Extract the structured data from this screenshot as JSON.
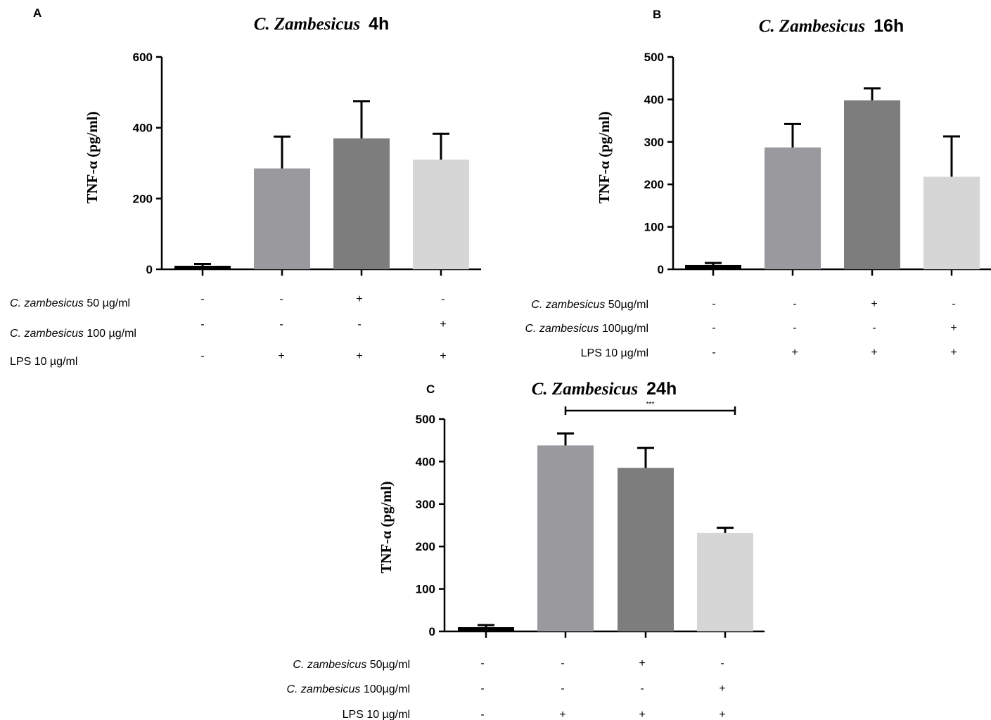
{
  "chart_data": [
    {
      "panel": "A",
      "type": "bar",
      "title": "C. Zambesicus  4h",
      "title_parts": [
        "C. Zambesicus",
        "4h"
      ],
      "ylabel": "TNF-α  (pg/ml)",
      "ylim": [
        0,
        600
      ],
      "yticks": [
        0,
        200,
        400,
        600
      ],
      "values": [
        10,
        285,
        370,
        310
      ],
      "errors": [
        5,
        90,
        105,
        73
      ],
      "bar_colors": [
        "#000000",
        "#9a9a9e",
        "#7d7d7d",
        "#d6d6d6"
      ],
      "conditions": [
        {
          "label_italic": "C. zambesicus",
          "label_rest": " 50 µg/ml",
          "signs": [
            "-",
            "-",
            "+",
            "-"
          ]
        },
        {
          "label_italic": "C. zambesicus",
          "label_rest": " 100 µg/ml",
          "signs": [
            "-",
            "-",
            "-",
            "+"
          ]
        },
        {
          "label_italic": "",
          "label_rest": "LPS 10 µg/ml",
          "signs": [
            "-",
            "+",
            "+",
            "+"
          ]
        }
      ]
    },
    {
      "panel": "B",
      "type": "bar",
      "title": "C. Zambesicus  16h",
      "title_parts": [
        "C. Zambesicus",
        "16h"
      ],
      "ylabel": "TNF-α  (pg/ml)",
      "ylim": [
        0,
        500
      ],
      "yticks": [
        0,
        100,
        200,
        300,
        400,
        500
      ],
      "values": [
        10,
        287,
        398,
        218
      ],
      "errors": [
        5,
        55,
        28,
        95
      ],
      "bar_colors": [
        "#000000",
        "#9a9a9e",
        "#7d7d7d",
        "#d6d6d6"
      ],
      "conditions": [
        {
          "label_italic": "C. zambesicus",
          "label_rest": " 50µg/ml",
          "signs": [
            "-",
            "-",
            "+",
            "-"
          ]
        },
        {
          "label_italic": "C. zambesicus",
          "label_rest": " 100µg/ml",
          "signs": [
            "-",
            "-",
            "-",
            "+"
          ]
        },
        {
          "label_italic": "",
          "label_rest": "LPS 10 µg/ml",
          "signs": [
            "-",
            "+",
            "+",
            "+"
          ]
        }
      ]
    },
    {
      "panel": "C",
      "type": "bar",
      "title": "C. Zambesicus  24h",
      "title_parts": [
        "C. Zambesicus",
        "24h"
      ],
      "ylabel": "TNF-α  (pg/ml)",
      "ylim": [
        0,
        500
      ],
      "yticks": [
        0,
        100,
        200,
        300,
        400,
        500
      ],
      "values": [
        10,
        438,
        385,
        232
      ],
      "errors": [
        5,
        28,
        47,
        12
      ],
      "bar_colors": [
        "#000000",
        "#9a9a9e",
        "#7d7d7d",
        "#d6d6d6"
      ],
      "significance": {
        "from": 1,
        "to": 3,
        "label": "***"
      },
      "conditions": [
        {
          "label_italic": "C. zambesicus",
          "label_rest": " 50µg/ml",
          "signs": [
            "-",
            "-",
            "+",
            "-"
          ]
        },
        {
          "label_italic": "C. zambesicus",
          "label_rest": " 100µg/ml",
          "signs": [
            "-",
            "-",
            "-",
            "+"
          ]
        },
        {
          "label_italic": "",
          "label_rest": "LPS 10 µg/ml",
          "signs": [
            "-",
            "+",
            "+",
            "+"
          ]
        }
      ]
    }
  ]
}
